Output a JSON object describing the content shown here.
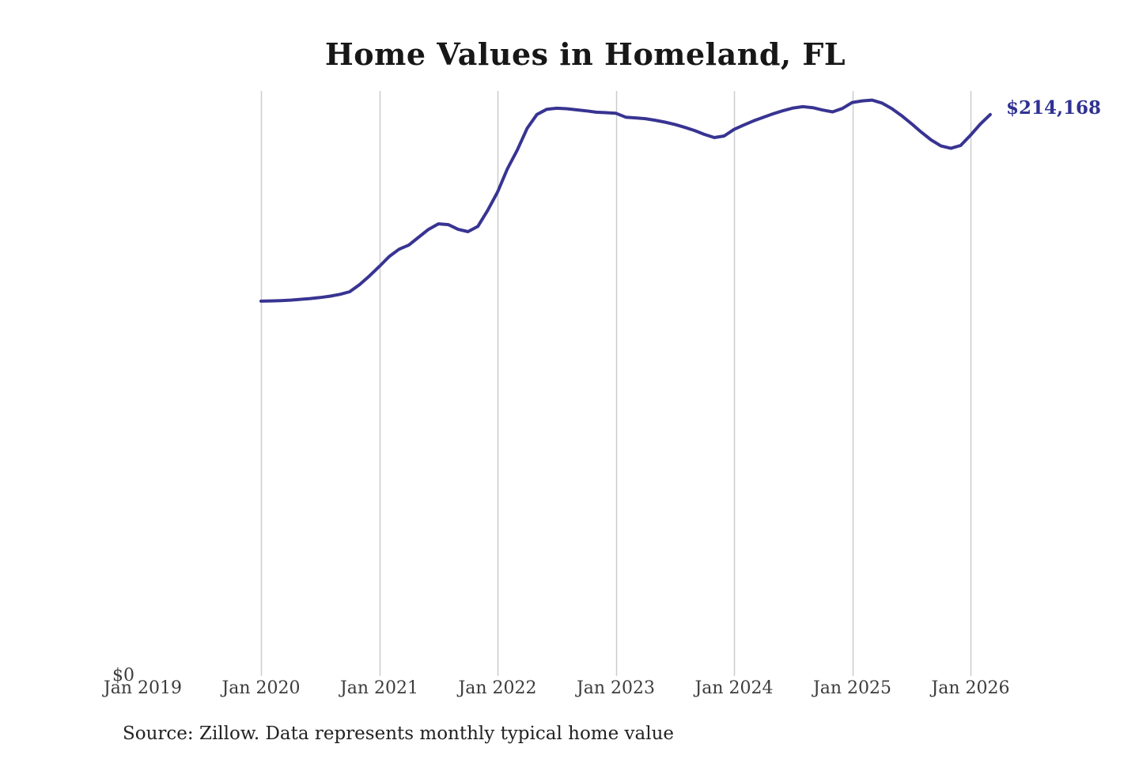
{
  "colors": {
    "line": "#383492",
    "end_label": "#2f3292",
    "gridline": "#cccccc",
    "title": "#171717",
    "tick_label": "#3c3c3c",
    "source": "#222222",
    "background": "#ffffff"
  },
  "chart_data": {
    "type": "line",
    "title": "Home Values in Homeland, FL",
    "source_note": "Source: Zillow. Data represents monthly typical home value",
    "end_label": "$214,168",
    "end_value": 214168,
    "legend": "none",
    "grid": "vertical-only",
    "y_axis": {
      "min": 0,
      "max": 223200,
      "zero_label": "$0",
      "unit": "USD"
    },
    "x_axis": {
      "start_month": "2020-01",
      "ticks": [
        {
          "label": "Jan 2019",
          "month_index": -12,
          "gridline": false
        },
        {
          "label": "Jan 2020",
          "month_index": 0,
          "gridline": true
        },
        {
          "label": "Jan 2021",
          "month_index": 12,
          "gridline": true
        },
        {
          "label": "Jan 2022",
          "month_index": 24,
          "gridline": true
        },
        {
          "label": "Jan 2023",
          "month_index": 36,
          "gridline": true
        },
        {
          "label": "Jan 2024",
          "month_index": 48,
          "gridline": true
        },
        {
          "label": "Jan 2025",
          "month_index": 60,
          "gridline": true
        },
        {
          "label": "Jan 2026",
          "month_index": 72,
          "gridline": true
        }
      ]
    },
    "series": [
      {
        "name": "Monthly typical home value",
        "color": "#383492",
        "months": [
          "2020-01",
          "2020-02",
          "2020-03",
          "2020-04",
          "2020-05",
          "2020-06",
          "2020-07",
          "2020-08",
          "2020-09",
          "2020-10",
          "2020-11",
          "2020-12",
          "2021-01",
          "2021-02",
          "2021-03",
          "2021-04",
          "2021-05",
          "2021-06",
          "2021-07",
          "2021-08",
          "2021-09",
          "2021-10",
          "2021-11",
          "2021-12",
          "2022-01",
          "2022-02",
          "2022-03",
          "2022-04",
          "2022-05",
          "2022-06",
          "2022-07",
          "2022-08",
          "2022-09",
          "2022-10",
          "2022-11",
          "2022-12",
          "2023-01",
          "2023-02",
          "2023-03",
          "2023-04",
          "2023-05",
          "2023-06",
          "2023-07",
          "2023-08",
          "2023-09",
          "2023-10",
          "2023-11",
          "2023-12",
          "2024-01",
          "2024-02",
          "2024-03",
          "2024-04",
          "2024-05",
          "2024-06",
          "2024-07",
          "2024-08",
          "2024-09",
          "2024-10",
          "2024-11",
          "2024-12",
          "2025-01",
          "2025-02",
          "2025-03",
          "2025-04",
          "2025-05",
          "2025-06",
          "2025-07",
          "2025-08",
          "2025-09",
          "2025-10",
          "2025-11",
          "2025-12",
          "2026-01",
          "2026-02",
          "2026-03"
        ],
        "values": [
          143000,
          143100,
          143200,
          143400,
          143700,
          144000,
          144400,
          144900,
          145600,
          146600,
          149300,
          152600,
          156200,
          160000,
          162800,
          164400,
          167400,
          170400,
          172500,
          172200,
          170400,
          169500,
          171500,
          177600,
          184600,
          193500,
          200600,
          208900,
          214200,
          216200,
          216600,
          216400,
          216000,
          215600,
          215100,
          214900,
          214700,
          213200,
          212900,
          212600,
          212000,
          211300,
          210400,
          209300,
          208100,
          206600,
          205400,
          206000,
          208500,
          210200,
          211800,
          213200,
          214500,
          215700,
          216700,
          217200,
          216800,
          215900,
          215200,
          216500,
          218800,
          219400,
          219700,
          218600,
          216500,
          213800,
          210700,
          207500,
          204500,
          202200,
          201300,
          202400,
          206300,
          210600,
          214168
        ]
      }
    ]
  }
}
